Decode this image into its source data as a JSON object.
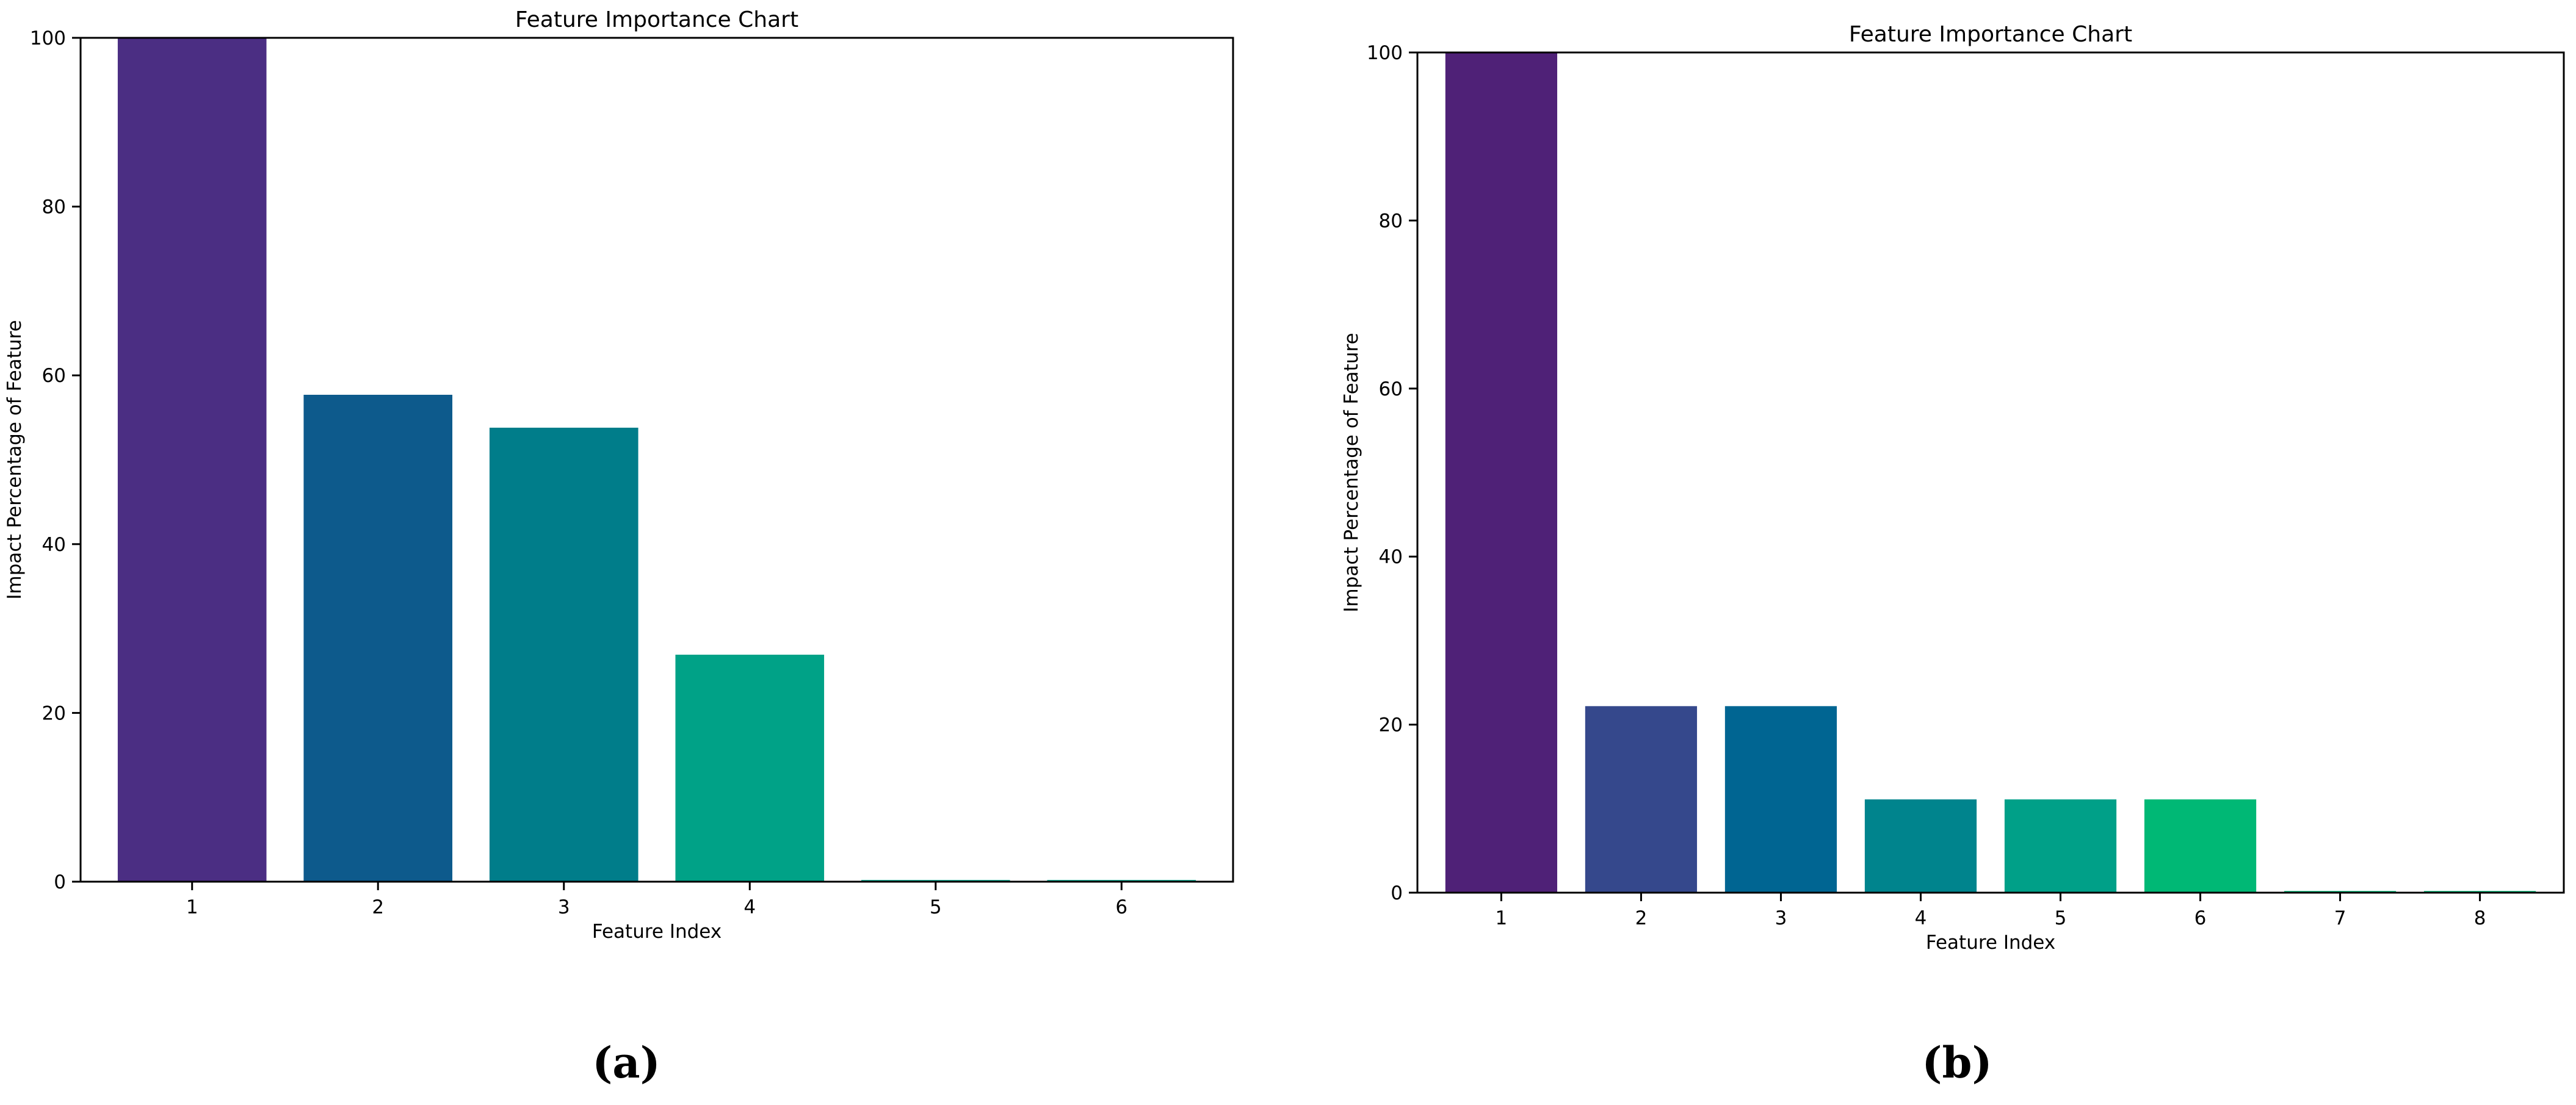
{
  "chart_data": [
    {
      "type": "bar",
      "title": "Feature Importance Chart",
      "xlabel": "Feature Index",
      "ylabel": "Impact Percentage of Feature",
      "categories": [
        "1",
        "2",
        "3",
        "4",
        "5",
        "6"
      ],
      "values": [
        100,
        57.7,
        53.8,
        26.9,
        0.2,
        0.2
      ],
      "colors": [
        "#4b2e83",
        "#0d5a8c",
        "#007d8a",
        "#00a287",
        "#00a287",
        "#00a287"
      ],
      "ylim": [
        0,
        100
      ],
      "yticks": [
        "0",
        "20",
        "40",
        "60",
        "80",
        "100"
      ],
      "grid": false,
      "caption": "(a)"
    },
    {
      "type": "bar",
      "title": "Feature Importance Chart",
      "xlabel": "Feature Index",
      "ylabel": "Impact Percentage of Feature",
      "categories": [
        "1",
        "2",
        "3",
        "4",
        "5",
        "6",
        "7",
        "8"
      ],
      "values": [
        100,
        22.2,
        22.2,
        11.1,
        11.1,
        11.1,
        0.2,
        0.2
      ],
      "colors": [
        "#4f2177",
        "#35488c",
        "#006592",
        "#00848d",
        "#00a088",
        "#00b875",
        "#00b875",
        "#00b875"
      ],
      "ylim": [
        0,
        100
      ],
      "yticks": [
        "0",
        "20",
        "40",
        "60",
        "80",
        "100"
      ],
      "grid": false,
      "caption": "(b)"
    }
  ]
}
